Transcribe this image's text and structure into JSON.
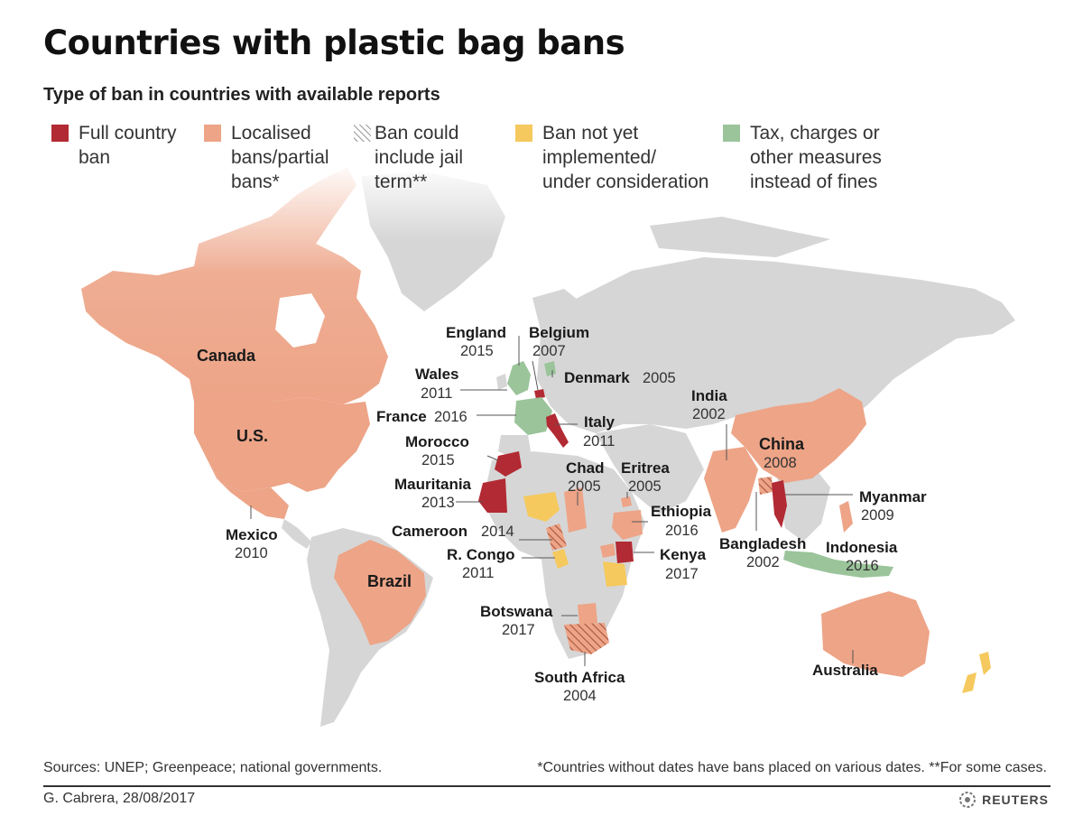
{
  "title": "Countries with plastic bag bans",
  "subtitle": "Type of ban in countries with available reports",
  "colors": {
    "full_ban": "#b22a33",
    "partial_ban": "#eda487",
    "jail_hatch": "#a8553f",
    "not_implemented": "#f5c95d",
    "tax": "#9bc49b",
    "no_data": "#d6d6d6",
    "ocean": "#ffffff"
  },
  "legend": [
    {
      "key": "full_ban",
      "label": "Full country\nban",
      "icon": "solid-swatch"
    },
    {
      "key": "partial_ban",
      "label": "Localised\nbans/partial\nbans*",
      "icon": "solid-swatch"
    },
    {
      "key": "jail",
      "label": "Ban could\ninclude jail\nterm**",
      "icon": "hatched-swatch"
    },
    {
      "key": "not_implemented",
      "label": "Ban not yet\nimplemented/\nunder consideration",
      "icon": "solid-swatch"
    },
    {
      "key": "tax",
      "label": "Tax, charges or\nother measures\ninstead of fines",
      "icon": "solid-swatch"
    }
  ],
  "map_labels": {
    "canada": {
      "name": "Canada"
    },
    "us": {
      "name": "U.S."
    },
    "mexico": {
      "name": "Mexico",
      "year": "2010"
    },
    "brazil": {
      "name": "Brazil"
    },
    "england": {
      "name": "England",
      "year": "2015"
    },
    "belgium": {
      "name": "Belgium",
      "year": "2007"
    },
    "wales": {
      "name": "Wales",
      "year": "2011"
    },
    "denmark": {
      "name": "Denmark",
      "year": "2005"
    },
    "france": {
      "name": "France",
      "year": "2016"
    },
    "italy": {
      "name": "Italy",
      "year": "2011"
    },
    "morocco": {
      "name": "Morocco",
      "year": "2015"
    },
    "mauritania": {
      "name": "Mauritania",
      "year": "2013"
    },
    "chad": {
      "name": "Chad",
      "year": "2005"
    },
    "eritrea": {
      "name": "Eritrea",
      "year": "2005"
    },
    "ethiopia": {
      "name": "Ethiopia",
      "year": "2016"
    },
    "cameroon": {
      "name": "Cameroon",
      "year": "2014"
    },
    "rcongo": {
      "name": "R. Congo",
      "year": "2011"
    },
    "kenya": {
      "name": "Kenya",
      "year": "2017"
    },
    "botswana": {
      "name": "Botswana",
      "year": "2017"
    },
    "south_africa": {
      "name": "South Africa",
      "year": "2004"
    },
    "india": {
      "name": "India",
      "year": "2002"
    },
    "china": {
      "name": "China",
      "year": "2008"
    },
    "myanmar": {
      "name": "Myanmar",
      "year": "2009"
    },
    "bangladesh": {
      "name": "Bangladesh",
      "year": "2002"
    },
    "indonesia": {
      "name": "Indonesia",
      "year": "2016"
    },
    "australia": {
      "name": "Australia"
    }
  },
  "footer": {
    "sources": "Sources: UNEP; Greenpeace; national governments.",
    "note": "*Countries without dates have bans placed on various dates. **For some cases.",
    "credit": "G. Cabrera,  28/08/2017",
    "brand": "REUTERS",
    "brand_icon": "reuters-logo-icon"
  }
}
